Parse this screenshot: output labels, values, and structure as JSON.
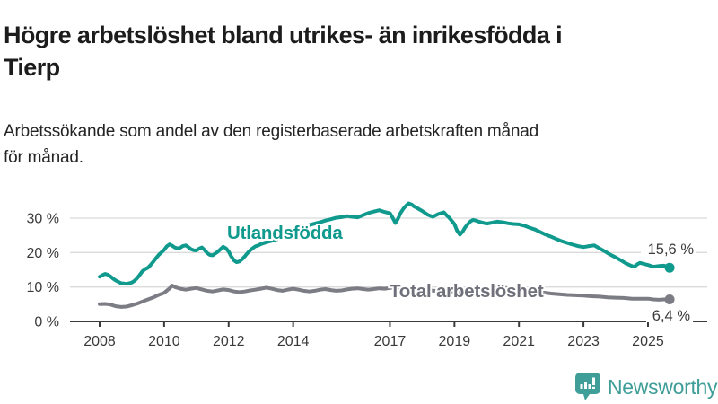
{
  "chart_data": {
    "type": "line",
    "title": "Högre arbetslöshet bland utrikes- än inrikesfödda i\nTierp",
    "subtitle": "Arbetssökande som andel av den registerbaserade arbetskraften månad\nför månad.",
    "grid": "horizontal",
    "legend_position": "inline-labels",
    "x_axis": {
      "range": [
        2007.9,
        2026.0
      ],
      "ticks": [
        2008,
        2010,
        2012,
        2014,
        2017,
        2019,
        2021,
        2023,
        2025
      ],
      "labels": [
        "2008",
        "2010",
        "2012",
        "2014",
        "2017",
        "2019",
        "2021",
        "2023",
        "2025"
      ]
    },
    "y_axis": {
      "unit": "%",
      "range": [
        0,
        36
      ],
      "ticks": [
        0,
        10,
        20,
        30
      ],
      "labels": [
        "0 %",
        "10 %",
        "20 %",
        "30 %"
      ]
    },
    "series": [
      {
        "name": "Utlandsfödda",
        "color": "#109a8d",
        "end_value": 15.6,
        "end_label": "15,6 %",
        "points": [
          [
            2008.0,
            13.0
          ],
          [
            2008.08,
            13.4
          ],
          [
            2008.17,
            13.8
          ],
          [
            2008.25,
            13.6
          ],
          [
            2008.33,
            13.1
          ],
          [
            2008.42,
            12.4
          ],
          [
            2008.5,
            11.9
          ],
          [
            2008.58,
            11.5
          ],
          [
            2008.67,
            11.1
          ],
          [
            2008.75,
            11.0
          ],
          [
            2008.83,
            10.9
          ],
          [
            2008.92,
            11.1
          ],
          [
            2009.0,
            11.3
          ],
          [
            2009.08,
            11.8
          ],
          [
            2009.17,
            12.6
          ],
          [
            2009.25,
            13.6
          ],
          [
            2009.33,
            14.6
          ],
          [
            2009.42,
            15.2
          ],
          [
            2009.5,
            15.6
          ],
          [
            2009.58,
            16.4
          ],
          [
            2009.67,
            17.4
          ],
          [
            2009.75,
            18.4
          ],
          [
            2009.83,
            19.3
          ],
          [
            2009.92,
            20.1
          ],
          [
            2010.0,
            20.8
          ],
          [
            2010.08,
            21.8
          ],
          [
            2010.17,
            22.4
          ],
          [
            2010.25,
            22.0
          ],
          [
            2010.33,
            21.5
          ],
          [
            2010.42,
            21.2
          ],
          [
            2010.5,
            21.4
          ],
          [
            2010.58,
            21.9
          ],
          [
            2010.67,
            22.1
          ],
          [
            2010.75,
            21.6
          ],
          [
            2010.83,
            21.0
          ],
          [
            2010.92,
            20.7
          ],
          [
            2011.0,
            20.6
          ],
          [
            2011.08,
            21.1
          ],
          [
            2011.17,
            21.5
          ],
          [
            2011.25,
            20.8
          ],
          [
            2011.33,
            19.9
          ],
          [
            2011.42,
            19.3
          ],
          [
            2011.5,
            19.2
          ],
          [
            2011.58,
            19.7
          ],
          [
            2011.67,
            20.3
          ],
          [
            2011.75,
            21.0
          ],
          [
            2011.83,
            21.7
          ],
          [
            2011.92,
            21.2
          ],
          [
            2012.0,
            20.3
          ],
          [
            2012.08,
            18.9
          ],
          [
            2012.17,
            17.7
          ],
          [
            2012.25,
            17.2
          ],
          [
            2012.33,
            17.4
          ],
          [
            2012.42,
            18.1
          ],
          [
            2012.5,
            18.9
          ],
          [
            2012.58,
            19.8
          ],
          [
            2012.67,
            20.7
          ],
          [
            2012.75,
            21.3
          ],
          [
            2012.83,
            21.8
          ],
          [
            2012.92,
            22.1
          ],
          [
            2013.0,
            22.5
          ],
          [
            2013.17,
            23.0
          ],
          [
            2013.33,
            23.4
          ],
          [
            2013.5,
            23.9
          ],
          [
            2013.67,
            24.5
          ],
          [
            2013.83,
            25.2
          ],
          [
            2014.0,
            25.9
          ],
          [
            2014.17,
            26.5
          ],
          [
            2014.33,
            27.2
          ],
          [
            2014.5,
            28.0
          ],
          [
            2014.67,
            28.4
          ],
          [
            2014.83,
            28.8
          ],
          [
            2015.0,
            29.3
          ],
          [
            2015.17,
            29.7
          ],
          [
            2015.33,
            30.1
          ],
          [
            2015.5,
            30.3
          ],
          [
            2015.67,
            30.6
          ],
          [
            2015.83,
            30.4
          ],
          [
            2016.0,
            30.2
          ],
          [
            2016.17,
            30.9
          ],
          [
            2016.33,
            31.5
          ],
          [
            2016.5,
            31.9
          ],
          [
            2016.67,
            32.3
          ],
          [
            2016.83,
            31.8
          ],
          [
            2017.0,
            31.4
          ],
          [
            2017.08,
            30.2
          ],
          [
            2017.17,
            28.6
          ],
          [
            2017.25,
            29.8
          ],
          [
            2017.33,
            31.5
          ],
          [
            2017.42,
            32.8
          ],
          [
            2017.5,
            33.6
          ],
          [
            2017.58,
            34.3
          ],
          [
            2017.67,
            34.0
          ],
          [
            2017.75,
            33.4
          ],
          [
            2017.83,
            33.0
          ],
          [
            2017.92,
            32.5
          ],
          [
            2018.0,
            32.1
          ],
          [
            2018.17,
            31.0
          ],
          [
            2018.33,
            30.4
          ],
          [
            2018.5,
            31.2
          ],
          [
            2018.67,
            31.7
          ],
          [
            2018.75,
            30.9
          ],
          [
            2018.83,
            30.2
          ],
          [
            2019.0,
            28.3
          ],
          [
            2019.08,
            26.4
          ],
          [
            2019.17,
            25.2
          ],
          [
            2019.25,
            26.0
          ],
          [
            2019.33,
            27.3
          ],
          [
            2019.42,
            28.3
          ],
          [
            2019.5,
            29.1
          ],
          [
            2019.58,
            29.5
          ],
          [
            2019.67,
            29.3
          ],
          [
            2019.75,
            29.0
          ],
          [
            2019.83,
            28.8
          ],
          [
            2019.92,
            28.6
          ],
          [
            2020.0,
            28.4
          ],
          [
            2020.17,
            28.7
          ],
          [
            2020.33,
            29.0
          ],
          [
            2020.5,
            28.8
          ],
          [
            2020.67,
            28.5
          ],
          [
            2020.83,
            28.3
          ],
          [
            2021.0,
            28.2
          ],
          [
            2021.17,
            27.8
          ],
          [
            2021.33,
            27.2
          ],
          [
            2021.5,
            26.7
          ],
          [
            2021.67,
            25.9
          ],
          [
            2021.83,
            25.2
          ],
          [
            2022.0,
            24.6
          ],
          [
            2022.17,
            23.9
          ],
          [
            2022.33,
            23.3
          ],
          [
            2022.5,
            22.8
          ],
          [
            2022.67,
            22.3
          ],
          [
            2022.83,
            21.9
          ],
          [
            2023.0,
            21.6
          ],
          [
            2023.17,
            21.9
          ],
          [
            2023.33,
            22.1
          ],
          [
            2023.5,
            21.2
          ],
          [
            2023.67,
            20.3
          ],
          [
            2023.83,
            19.4
          ],
          [
            2024.0,
            18.6
          ],
          [
            2024.17,
            17.7
          ],
          [
            2024.33,
            16.8
          ],
          [
            2024.5,
            16.1
          ],
          [
            2024.58,
            15.9
          ],
          [
            2024.67,
            16.6
          ],
          [
            2024.75,
            17.0
          ],
          [
            2024.83,
            16.8
          ],
          [
            2024.92,
            16.6
          ],
          [
            2025.0,
            16.4
          ],
          [
            2025.17,
            15.9
          ],
          [
            2025.33,
            16.1
          ],
          [
            2025.5,
            16.2
          ],
          [
            2025.58,
            15.9
          ],
          [
            2025.67,
            15.6
          ]
        ]
      },
      {
        "name": "Total arbetslöshet",
        "color": "#7c7c84",
        "end_value": 6.4,
        "end_label": "6,4 %",
        "points": [
          [
            2008.0,
            5.0
          ],
          [
            2008.17,
            5.1
          ],
          [
            2008.33,
            4.9
          ],
          [
            2008.5,
            4.4
          ],
          [
            2008.67,
            4.2
          ],
          [
            2008.83,
            4.3
          ],
          [
            2009.0,
            4.7
          ],
          [
            2009.17,
            5.2
          ],
          [
            2009.33,
            5.8
          ],
          [
            2009.5,
            6.4
          ],
          [
            2009.67,
            7.0
          ],
          [
            2009.83,
            7.7
          ],
          [
            2010.0,
            8.3
          ],
          [
            2010.17,
            9.6
          ],
          [
            2010.25,
            10.4
          ],
          [
            2010.33,
            10.0
          ],
          [
            2010.5,
            9.5
          ],
          [
            2010.67,
            9.2
          ],
          [
            2010.83,
            9.5
          ],
          [
            2011.0,
            9.7
          ],
          [
            2011.17,
            9.3
          ],
          [
            2011.33,
            8.9
          ],
          [
            2011.5,
            8.7
          ],
          [
            2011.67,
            9.0
          ],
          [
            2011.83,
            9.3
          ],
          [
            2012.0,
            9.1
          ],
          [
            2012.17,
            8.7
          ],
          [
            2012.33,
            8.5
          ],
          [
            2012.5,
            8.7
          ],
          [
            2012.67,
            9.0
          ],
          [
            2012.83,
            9.2
          ],
          [
            2013.0,
            9.5
          ],
          [
            2013.17,
            9.8
          ],
          [
            2013.33,
            9.5
          ],
          [
            2013.5,
            9.1
          ],
          [
            2013.67,
            8.9
          ],
          [
            2013.83,
            9.2
          ],
          [
            2014.0,
            9.5
          ],
          [
            2014.17,
            9.2
          ],
          [
            2014.33,
            8.9
          ],
          [
            2014.5,
            8.7
          ],
          [
            2014.67,
            8.9
          ],
          [
            2014.83,
            9.2
          ],
          [
            2015.0,
            9.4
          ],
          [
            2015.17,
            9.1
          ],
          [
            2015.33,
            8.9
          ],
          [
            2015.5,
            9.0
          ],
          [
            2015.67,
            9.3
          ],
          [
            2015.83,
            9.5
          ],
          [
            2016.0,
            9.6
          ],
          [
            2016.17,
            9.4
          ],
          [
            2016.33,
            9.2
          ],
          [
            2016.5,
            9.4
          ],
          [
            2016.67,
            9.6
          ],
          [
            2016.83,
            9.5
          ],
          [
            2017.0,
            9.7
          ],
          [
            2017.17,
            9.9
          ],
          [
            2017.33,
            9.7
          ],
          [
            2017.5,
            9.5
          ],
          [
            2017.67,
            9.4
          ],
          [
            2017.83,
            9.3
          ],
          [
            2018.0,
            9.2
          ],
          [
            2018.25,
            9.0
          ],
          [
            2018.5,
            8.8
          ],
          [
            2018.75,
            8.7
          ],
          [
            2019.0,
            8.6
          ],
          [
            2019.25,
            8.5
          ],
          [
            2019.5,
            8.6
          ],
          [
            2019.75,
            8.8
          ],
          [
            2020.0,
            9.0
          ],
          [
            2020.25,
            9.6
          ],
          [
            2020.5,
            9.8
          ],
          [
            2020.75,
            9.6
          ],
          [
            2021.0,
            9.3
          ],
          [
            2021.25,
            9.0
          ],
          [
            2021.5,
            8.7
          ],
          [
            2021.75,
            8.4
          ],
          [
            2022.0,
            8.1
          ],
          [
            2022.25,
            7.9
          ],
          [
            2022.5,
            7.7
          ],
          [
            2022.75,
            7.6
          ],
          [
            2023.0,
            7.5
          ],
          [
            2023.25,
            7.3
          ],
          [
            2023.5,
            7.2
          ],
          [
            2023.75,
            7.0
          ],
          [
            2024.0,
            6.9
          ],
          [
            2024.25,
            6.8
          ],
          [
            2024.5,
            6.6
          ],
          [
            2024.75,
            6.6
          ],
          [
            2025.0,
            6.6
          ],
          [
            2025.17,
            6.4
          ],
          [
            2025.33,
            6.3
          ],
          [
            2025.5,
            6.4
          ],
          [
            2025.67,
            6.4
          ]
        ]
      }
    ]
  },
  "footer": {
    "brand": "Newsworthy",
    "brand_color": "#3f9e98",
    "logo_icon": "bar-chart-speech-bubble-icon"
  }
}
